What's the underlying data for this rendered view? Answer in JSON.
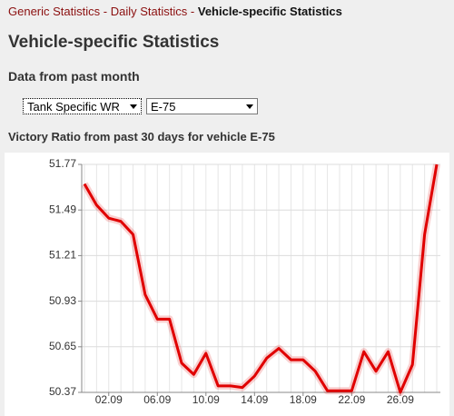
{
  "breadcrumb": {
    "items": [
      "Generic Statistics",
      "Daily Statistics",
      "Vehicle-specific Statistics"
    ],
    "separator": "-"
  },
  "heading": "Vehicle-specific Statistics",
  "subheading": "Data from past month",
  "selects": [
    "Tank Specific WR",
    "E-75"
  ],
  "chart_data": {
    "type": "line",
    "title": "Victory Ratio from past 30 days for vehicle E-75",
    "categories": [
      null,
      null,
      "02.09",
      null,
      null,
      null,
      "06.09",
      null,
      null,
      null,
      "10.09",
      null,
      null,
      null,
      "14.09",
      null,
      null,
      null,
      "18.09",
      null,
      null,
      null,
      "22.09",
      null,
      null,
      null,
      "26.09",
      null,
      null,
      null
    ],
    "series": [
      {
        "color": "#e00000",
        "values": [
          51.65,
          51.52,
          51.44,
          51.42,
          51.34,
          50.97,
          50.82,
          50.82,
          50.55,
          50.48,
          50.61,
          50.41,
          50.41,
          50.4,
          50.47,
          50.58,
          50.64,
          50.57,
          50.57,
          50.5,
          50.38,
          50.38,
          50.38,
          50.62,
          50.5,
          50.62,
          50.37,
          50.54,
          51.34,
          51.77
        ]
      }
    ],
    "ylim": [
      50.37,
      51.77
    ],
    "yticks": [
      50.37,
      50.65,
      50.93,
      51.21,
      51.49,
      51.77
    ],
    "grid": true
  }
}
